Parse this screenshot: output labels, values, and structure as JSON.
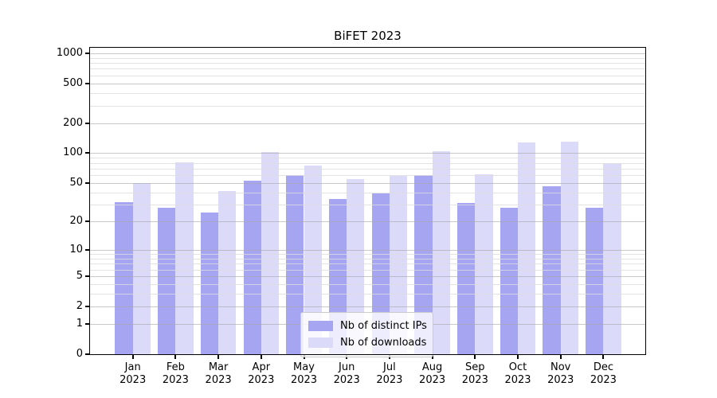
{
  "title": "BiFET 2023",
  "colors": {
    "ips_bar": "#a5a5f2",
    "downloads_bar": "#dbdbf9",
    "grid_major": "#a8a8a8",
    "grid_minor": "#dcdcdc",
    "axis": "#000000",
    "background": "#ffffff"
  },
  "legend": {
    "items": [
      {
        "label": "Nb of distinct IPs",
        "color": "#a5a5f2"
      },
      {
        "label": "Nb of downloads",
        "color": "#dbdbf9"
      }
    ]
  },
  "y_axis": {
    "scale": "log1p",
    "tick_labels": [
      "0",
      "1",
      "2",
      "5",
      "10",
      "20",
      "50",
      "100",
      "200",
      "500",
      "1000"
    ],
    "tick_values": [
      0,
      1,
      2,
      5,
      10,
      20,
      50,
      100,
      200,
      500,
      1000
    ],
    "minor_values": [
      3,
      4,
      6,
      7,
      8,
      9,
      30,
      40,
      60,
      70,
      80,
      90,
      300,
      400,
      600,
      700,
      800,
      900
    ]
  },
  "x_axis": {
    "year": "2023",
    "months": [
      "Jan",
      "Feb",
      "Mar",
      "Apr",
      "May",
      "Jun",
      "Jul",
      "Aug",
      "Sep",
      "Oct",
      "Nov",
      "Dec"
    ]
  },
  "chart_data": {
    "type": "bar",
    "title": "BiFET 2023",
    "xlabel": "",
    "ylabel": "",
    "yscale": "log1p",
    "ylim": [
      0,
      1100
    ],
    "grid": true,
    "legend_position": "lower center",
    "categories": [
      "Jan 2023",
      "Feb 2023",
      "Mar 2023",
      "Apr 2023",
      "May 2023",
      "Jun 2023",
      "Jul 2023",
      "Aug 2023",
      "Sep 2023",
      "Oct 2023",
      "Nov 2023",
      "Dec 2023"
    ],
    "series": [
      {
        "name": "Nb of distinct IPs",
        "color": "#a5a5f2",
        "values": [
          32,
          28,
          25,
          53,
          60,
          34,
          39,
          60,
          31,
          28,
          46,
          28
        ]
      },
      {
        "name": "Nb of downloads",
        "color": "#dbdbf9",
        "values": [
          50,
          81,
          41,
          102,
          75,
          55,
          59,
          104,
          61,
          127,
          131,
          80
        ]
      }
    ]
  }
}
